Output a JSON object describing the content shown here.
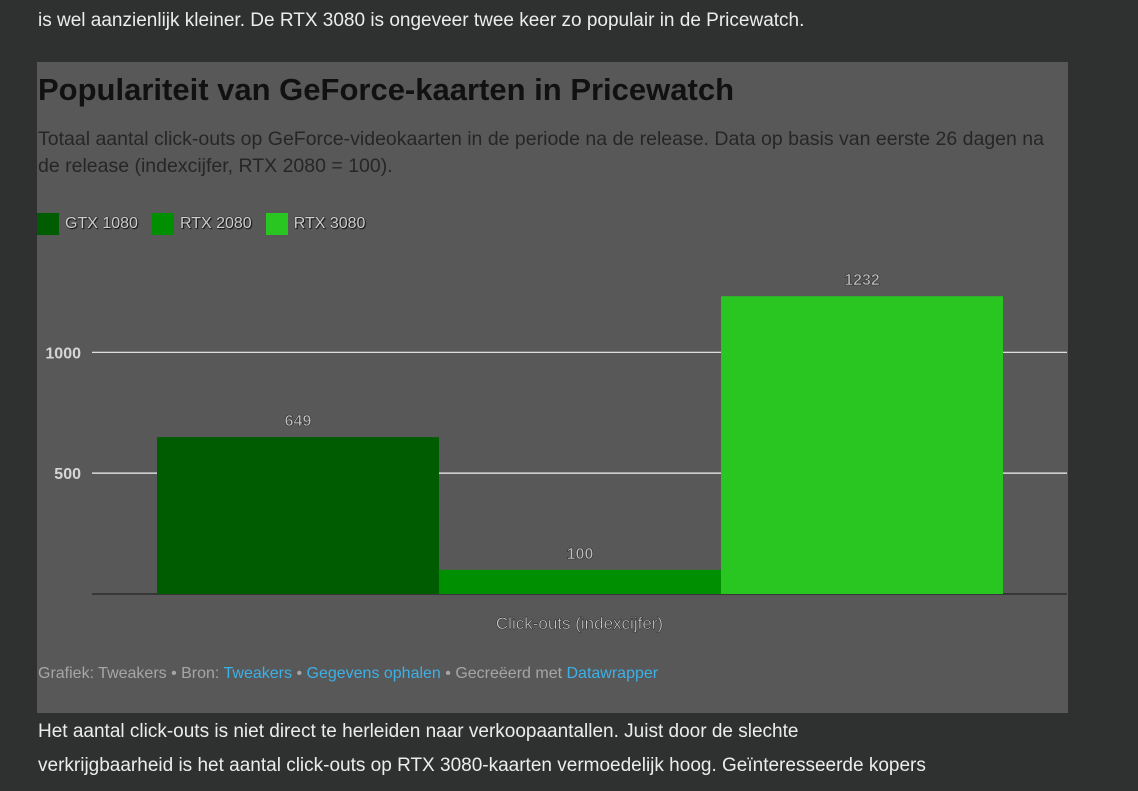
{
  "article": {
    "para_top": "is wel aanzienlijk kleiner. De RTX 3080 is ongeveer twee keer zo populair in de Pricewatch.",
    "para_bottom_line1": "Het aantal click-outs is niet direct te herleiden naar verkoopaantallen. Juist door de slechte",
    "para_bottom_line2": "verkrijgbaarheid is het aantal click-outs op RTX 3080-kaarten vermoedelijk hoog. Geïnteresseerde kopers"
  },
  "colors": {
    "page_bg": "#2f3030",
    "card_bg": "#585858",
    "link": "#3db0e6",
    "gtx_1080": "#005c00",
    "rtx_2080": "#008f00",
    "rtx_3080": "#29c622"
  },
  "chart_data": {
    "type": "bar",
    "title": "Populariteit van GeForce-kaarten in Pricewatch",
    "subtitle": "Totaal aantal click-outs op GeForce-videokaarten in de periode na de release. Data op basis van eerste 26 dagen na de release (indexcijfer, RTX 2080 = 100).",
    "categories": [
      "Click-outs (indexcijfer)"
    ],
    "xlabel": "Click-outs (indexcijfer)",
    "ylabel": "",
    "ylim": [
      0,
      1232
    ],
    "yticks": [
      500,
      1000
    ],
    "grid": true,
    "legend_position": "top-left",
    "series": [
      {
        "name": "GTX 1080",
        "values": [
          649
        ],
        "color": "#005c00"
      },
      {
        "name": "RTX 2080",
        "values": [
          100
        ],
        "color": "#008f00"
      },
      {
        "name": "RTX 3080",
        "values": [
          1232
        ],
        "color": "#29c622"
      }
    ]
  },
  "footer": {
    "prefix": "Grafiek: Tweakers • Bron: ",
    "source_link": "Tweakers",
    "sep1": " • ",
    "data_link": "Gegevens ophalen",
    "sep2": " • Gecreëerd met ",
    "tool_link": "Datawrapper"
  }
}
